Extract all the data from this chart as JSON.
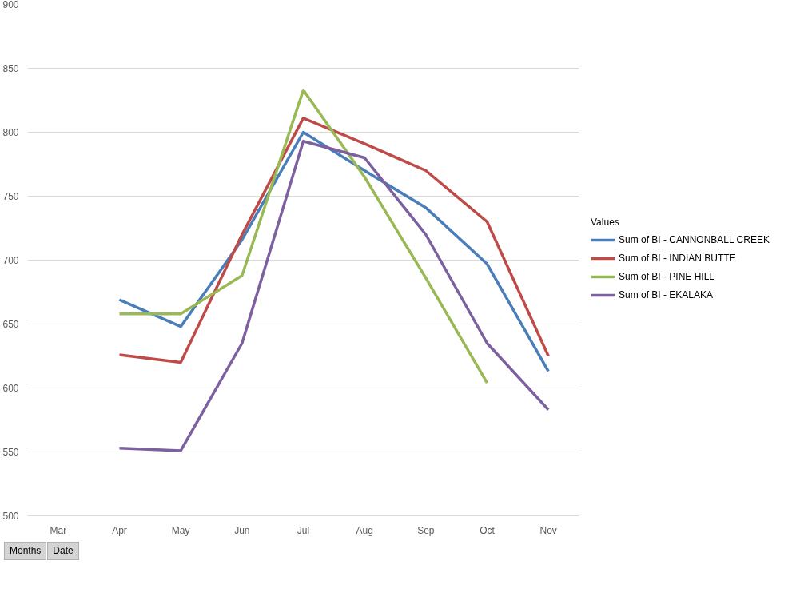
{
  "chart_data": {
    "type": "line",
    "categories": [
      "Mar",
      "Apr",
      "May",
      "Jun",
      "Jul",
      "Aug",
      "Sep",
      "Oct",
      "Nov"
    ],
    "series": [
      {
        "name": "Sum of BI - CANNONBALL CREEK",
        "color": "#4a7ebb",
        "values": [
          null,
          669,
          648,
          716,
          800,
          770,
          741,
          697,
          613
        ]
      },
      {
        "name": "Sum of BI - INDIAN BUTTE",
        "color": "#be4b48",
        "values": [
          null,
          626,
          620,
          720,
          811,
          791,
          770,
          730,
          625
        ]
      },
      {
        "name": "Sum of BI - PINE HILL",
        "color": "#98b954",
        "values": [
          null,
          658,
          658,
          688,
          833,
          765,
          686,
          604,
          null
        ]
      },
      {
        "name": "Sum of BI - EKALAKA",
        "color": "#7d60a0",
        "values": [
          null,
          553,
          551,
          635,
          793,
          780,
          720,
          635,
          583
        ]
      }
    ],
    "ylim": [
      500,
      900
    ],
    "yticks": [
      500,
      550,
      600,
      650,
      700,
      750,
      800,
      850,
      900
    ],
    "grid": "y",
    "legend": "right",
    "legend_title": "Values",
    "marker": "none",
    "line_style": "solid",
    "annotations": [
      "Months",
      "Date"
    ]
  }
}
